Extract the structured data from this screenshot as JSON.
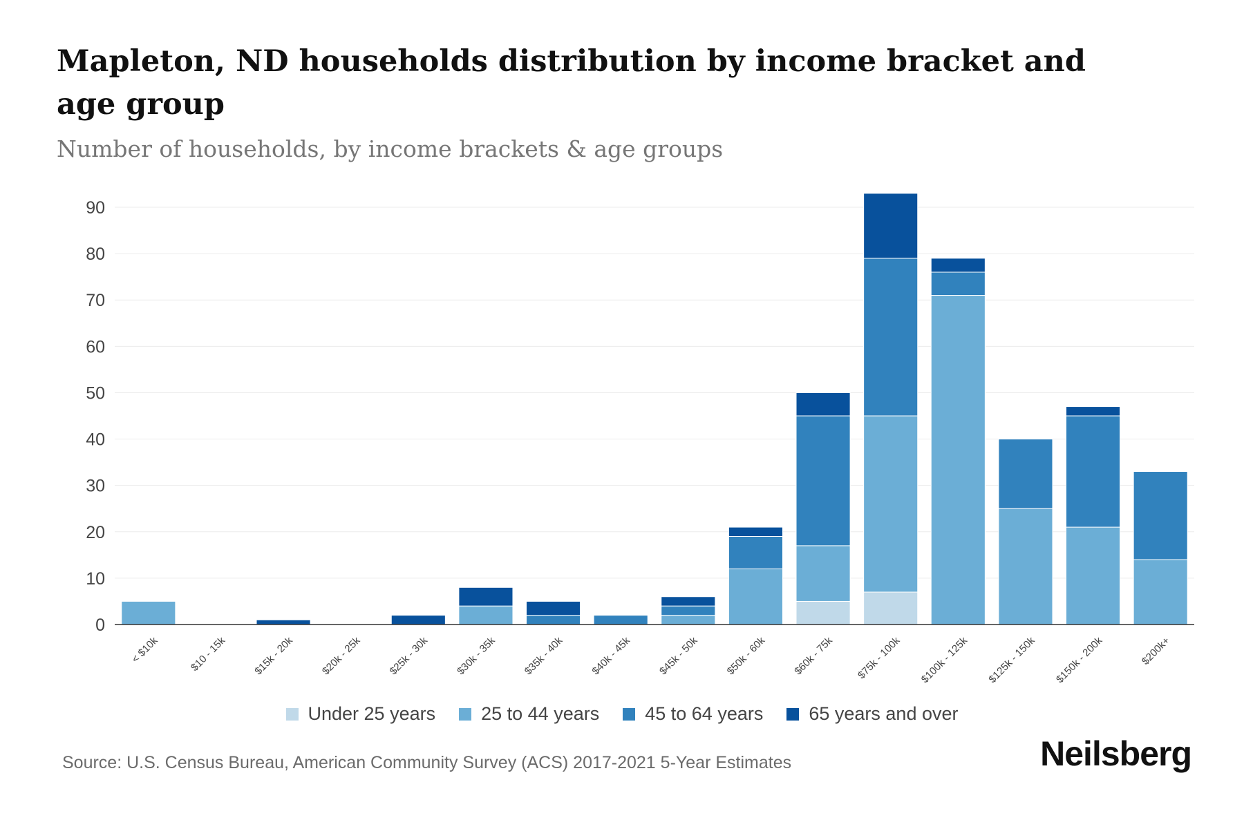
{
  "title": "Mapleton, ND households distribution by income bracket and age group",
  "subtitle": "Number of households, by income brackets & age groups",
  "source": "Source: U.S. Census Bureau, American Community Survey (ACS) 2017-2021 5-Year Estimates",
  "brand": "Neilsberg",
  "chart_data": {
    "type": "bar",
    "stacked": true,
    "title": "Mapleton, ND households distribution by income bracket and age group",
    "subtitle": "Number of households, by income brackets & age groups",
    "xlabel": "",
    "ylabel": "",
    "ylim": [
      0,
      90
    ],
    "yticks": [
      0,
      10,
      20,
      30,
      40,
      50,
      60,
      70,
      80,
      90
    ],
    "grid": true,
    "legend_position": "bottom",
    "categories": [
      "< $10k",
      "$10 - 15k",
      "$15k - 20k",
      "$20k - 25k",
      "$25k - 30k",
      "$30k - 35k",
      "$35k - 40k",
      "$40k - 45k",
      "$45k - 50k",
      "$50k - 60k",
      "$60k - 75k",
      "$75k - 100k",
      "$100k - 125k",
      "$125k - 150k",
      "$150k - 200k",
      "$200k+"
    ],
    "series": [
      {
        "name": "Under 25 years",
        "color": "#c0d9e9",
        "values": [
          0,
          0,
          0,
          0,
          0,
          0,
          0,
          0,
          0,
          0,
          5,
          7,
          0,
          0,
          0,
          0
        ]
      },
      {
        "name": "25 to 44 years",
        "color": "#6baed6",
        "values": [
          5,
          0,
          0,
          0,
          0,
          4,
          0,
          0,
          2,
          12,
          12,
          38,
          71,
          25,
          21,
          14
        ]
      },
      {
        "name": "45 to 64 years",
        "color": "#3182bd",
        "values": [
          0,
          0,
          0,
          0,
          0,
          0,
          2,
          2,
          2,
          7,
          28,
          34,
          5,
          15,
          24,
          19
        ]
      },
      {
        "name": "65 years and over",
        "color": "#08519c",
        "values": [
          0,
          0,
          1,
          0,
          2,
          4,
          3,
          0,
          2,
          2,
          5,
          14,
          3,
          0,
          2,
          0
        ]
      }
    ]
  }
}
